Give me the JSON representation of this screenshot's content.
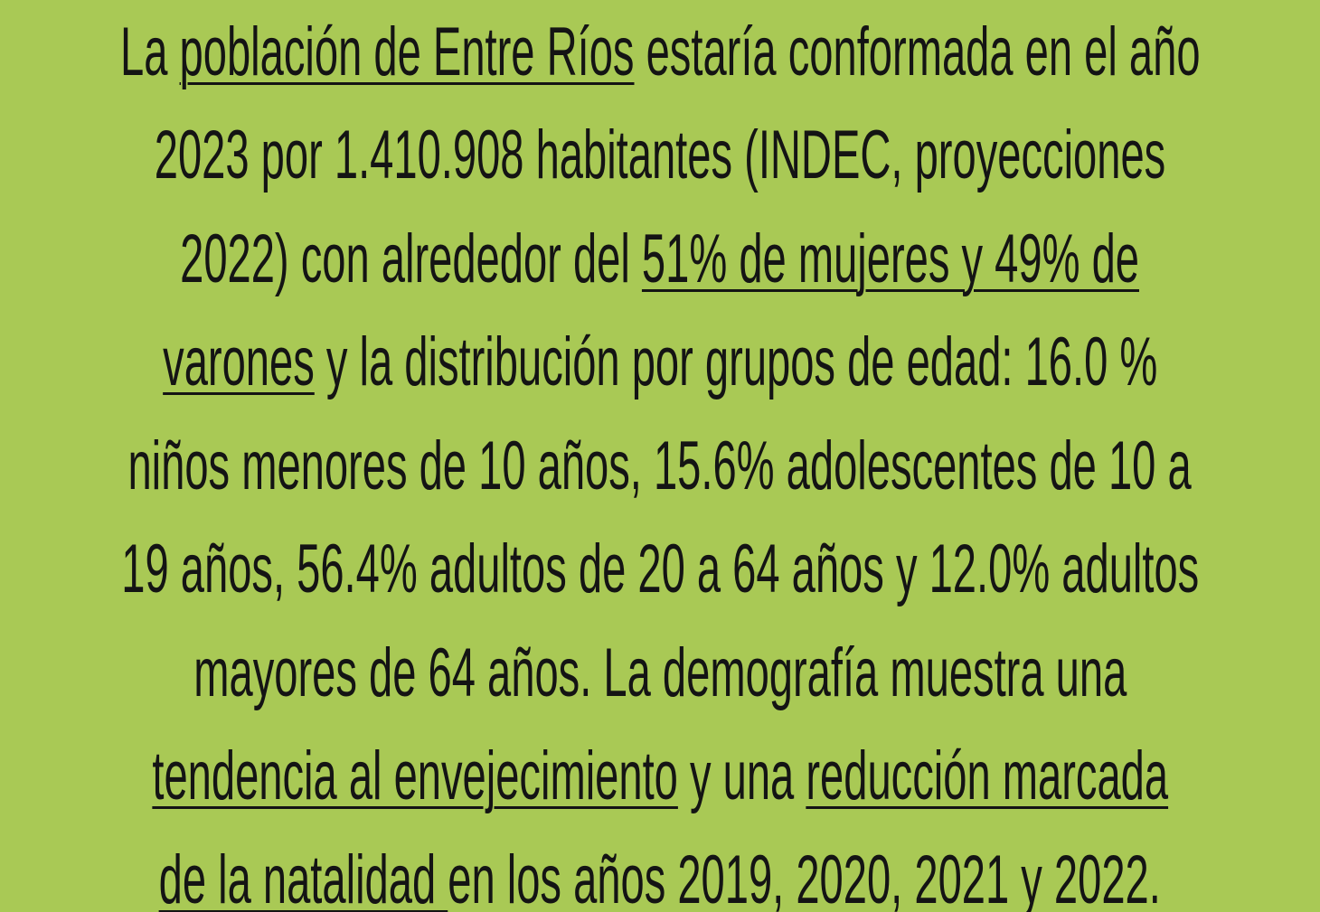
{
  "paragraph": {
    "lines": [
      [
        {
          "text": "La "
        },
        {
          "text": "población de Entre Ríos",
          "underline": true
        },
        {
          "text": " estaría conformada en el año"
        }
      ],
      [
        {
          "text": "2023 por 1.410.908 habitantes (INDEC, proyecciones"
        }
      ],
      [
        {
          "text": "2022) con alrededor del "
        },
        {
          "text": "51% de mujeres y 49% de",
          "underline": true
        }
      ],
      [
        {
          "text": "varones",
          "underline": true
        },
        {
          "text": " y la distribución por grupos de edad: 16.0 %"
        }
      ],
      [
        {
          "text": "niños menores de 10 años, 15.6% adolescentes de 10 a"
        }
      ],
      [
        {
          "text": "19 años, 56.4% adultos de 20 a 64 años y 12.0% adultos"
        }
      ],
      [
        {
          "text": "mayores de 64 años. La demografía muestra una"
        }
      ],
      [
        {
          "text": "tendencia al envejecimiento",
          "underline": true
        },
        {
          "text": " y una "
        },
        {
          "text": "reducción marcada",
          "underline": true
        }
      ],
      [
        {
          "text": "de la natalidad ",
          "underline": true
        },
        {
          "text": "en los años 2019, 2020, 2021 y 2022."
        }
      ]
    ]
  }
}
